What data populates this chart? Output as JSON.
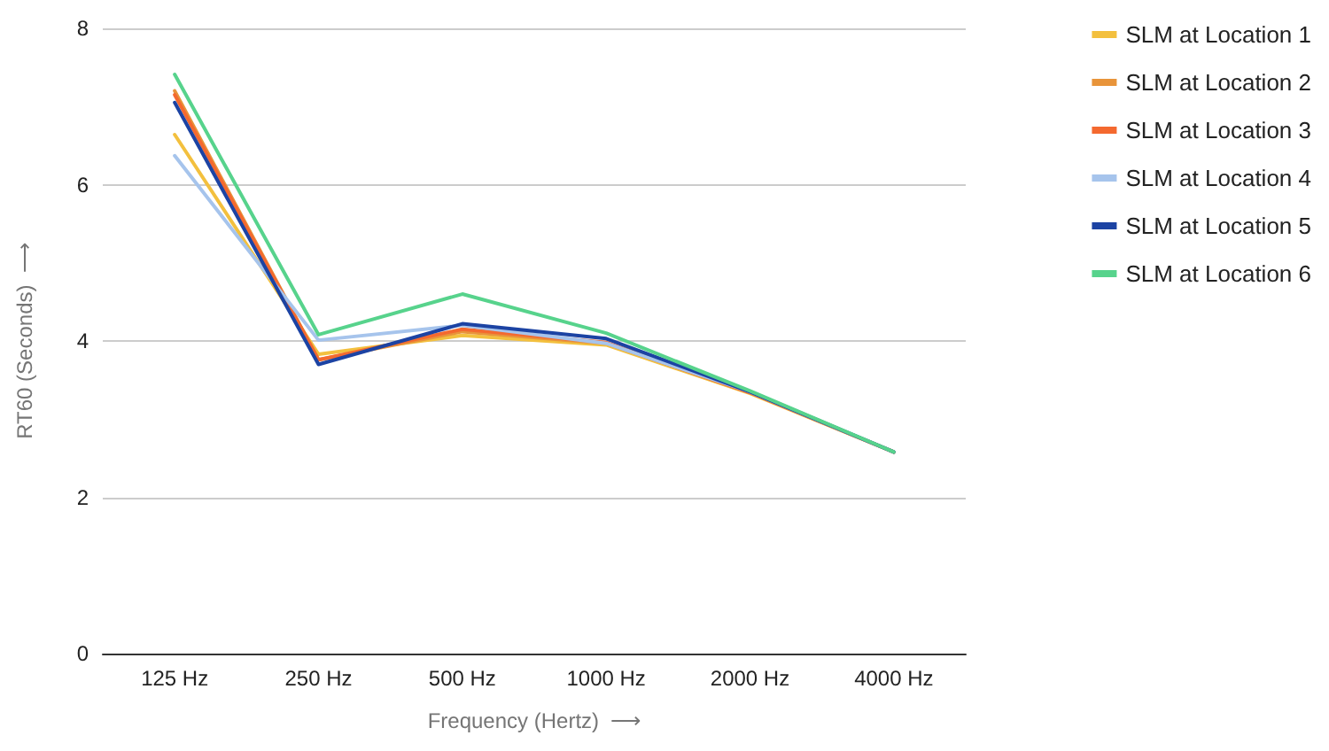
{
  "chart_data": {
    "type": "line",
    "xlabel": "Frequency (Hertz)  ⟶",
    "ylabel": "RT60 (Seconds)  ⟶",
    "categories": [
      "125 Hz",
      "250 Hz",
      "500 Hz",
      "1000 Hz",
      "2000 Hz",
      "4000 Hz"
    ],
    "series": [
      {
        "name": "SLM at Location 1",
        "color": "#f3c03e",
        "values": [
          6.64,
          3.83,
          4.07,
          3.95,
          3.33,
          2.58
        ]
      },
      {
        "name": "SLM at Location 2",
        "color": "#e8943a",
        "values": [
          7.2,
          3.76,
          4.12,
          3.97,
          3.34,
          2.58
        ]
      },
      {
        "name": "SLM at Location 3",
        "color": "#f4692f",
        "values": [
          7.15,
          3.76,
          4.15,
          3.98,
          3.34,
          2.58
        ]
      },
      {
        "name": "SLM at Location 4",
        "color": "#a6c4ec",
        "values": [
          6.37,
          4.01,
          4.2,
          3.97,
          3.35,
          2.58
        ]
      },
      {
        "name": "SLM at Location 5",
        "color": "#1c43a3",
        "values": [
          7.05,
          3.7,
          4.22,
          4.03,
          3.35,
          2.58
        ]
      },
      {
        "name": "SLM at Location 6",
        "color": "#57d38c",
        "values": [
          7.41,
          4.08,
          4.6,
          4.1,
          3.36,
          2.58
        ]
      }
    ],
    "ylim": [
      0,
      8
    ],
    "yticks": [
      0,
      2,
      4,
      6,
      8
    ],
    "grid": "y",
    "legend": "right",
    "marker": "none",
    "line_style": "solid"
  }
}
